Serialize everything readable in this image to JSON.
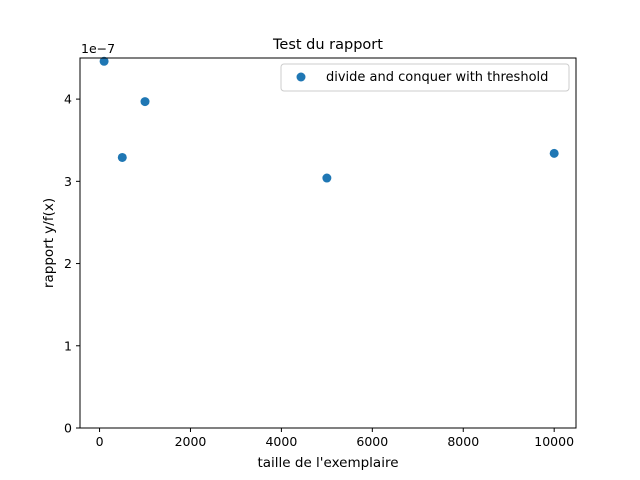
{
  "chart_data": {
    "type": "scatter",
    "title": "Test du rapport",
    "xlabel": "taille de l'exemplaire",
    "ylabel": "rapport y/f(x)",
    "y_offset_label": "1e−7",
    "xlim": [
      -430,
      10480
    ],
    "ylim": [
      0,
      4.5
    ],
    "xticks": [
      0,
      2000,
      4000,
      6000,
      8000,
      10000
    ],
    "xtick_labels": [
      "0",
      "2000",
      "4000",
      "6000",
      "8000",
      "10000"
    ],
    "yticks": [
      0,
      1,
      2,
      3,
      4
    ],
    "ytick_labels": [
      "0",
      "1",
      "2",
      "3",
      "4"
    ],
    "grid": false,
    "legend_position": "upper right",
    "series": [
      {
        "name": "divide and conquer with threshold",
        "color": "#1f77b4",
        "x": [
          100,
          500,
          1000,
          5000,
          10000
        ],
        "y": [
          4.46,
          3.29,
          3.97,
          3.04,
          3.34
        ]
      }
    ]
  }
}
